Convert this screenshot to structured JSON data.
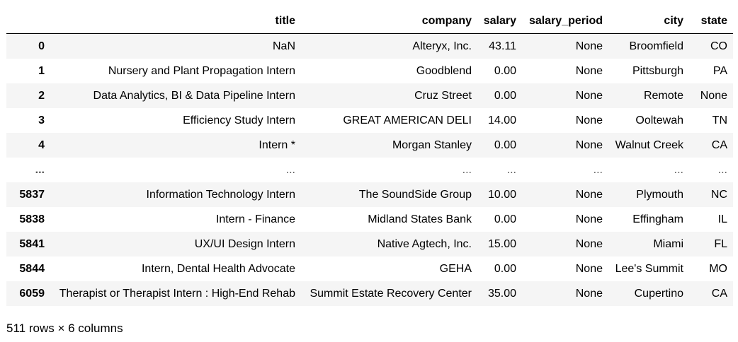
{
  "columns": [
    "",
    "title",
    "company",
    "salary",
    "salary_period",
    "city",
    "state"
  ],
  "rows": [
    {
      "index": "0",
      "title": "NaN",
      "company": "Alteryx, Inc.",
      "salary": "43.11",
      "salary_period": "None",
      "city": "Broomfield",
      "state": "CO"
    },
    {
      "index": "1",
      "title": "Nursery and Plant Propagation Intern",
      "company": "Goodblend",
      "salary": "0.00",
      "salary_period": "None",
      "city": "Pittsburgh",
      "state": "PA"
    },
    {
      "index": "2",
      "title": "Data Analytics, BI & Data Pipeline Intern",
      "company": "Cruz Street",
      "salary": "0.00",
      "salary_period": "None",
      "city": "Remote",
      "state": "None"
    },
    {
      "index": "3",
      "title": "Efficiency Study Intern",
      "company": "GREAT AMERICAN DELI",
      "salary": "14.00",
      "salary_period": "None",
      "city": "Ooltewah",
      "state": "TN"
    },
    {
      "index": "4",
      "title": "Intern *",
      "company": "Morgan Stanley",
      "salary": "0.00",
      "salary_period": "None",
      "city": "Walnut Creek",
      "state": "CA"
    },
    {
      "index": "...",
      "title": "...",
      "company": "...",
      "salary": "...",
      "salary_period": "...",
      "city": "...",
      "state": "..."
    },
    {
      "index": "5837",
      "title": "Information Technology Intern",
      "company": "The SoundSide Group",
      "salary": "10.00",
      "salary_period": "None",
      "city": "Plymouth",
      "state": "NC"
    },
    {
      "index": "5838",
      "title": "Intern - Finance",
      "company": "Midland States Bank",
      "salary": "0.00",
      "salary_period": "None",
      "city": "Effingham",
      "state": "IL"
    },
    {
      "index": "5841",
      "title": "UX/UI Design Intern",
      "company": "Native Agtech, Inc.",
      "salary": "15.00",
      "salary_period": "None",
      "city": "Miami",
      "state": "FL"
    },
    {
      "index": "5844",
      "title": "Intern, Dental Health Advocate",
      "company": "GEHA",
      "salary": "0.00",
      "salary_period": "None",
      "city": "Lee's Summit",
      "state": "MO"
    },
    {
      "index": "6059",
      "title": "Therapist or Therapist Intern : High-End Rehab",
      "company": "Summit Estate Recovery Center",
      "salary": "35.00",
      "salary_period": "None",
      "city": "Cupertino",
      "state": "CA"
    }
  ],
  "shape_text": "511 rows × 6 columns"
}
